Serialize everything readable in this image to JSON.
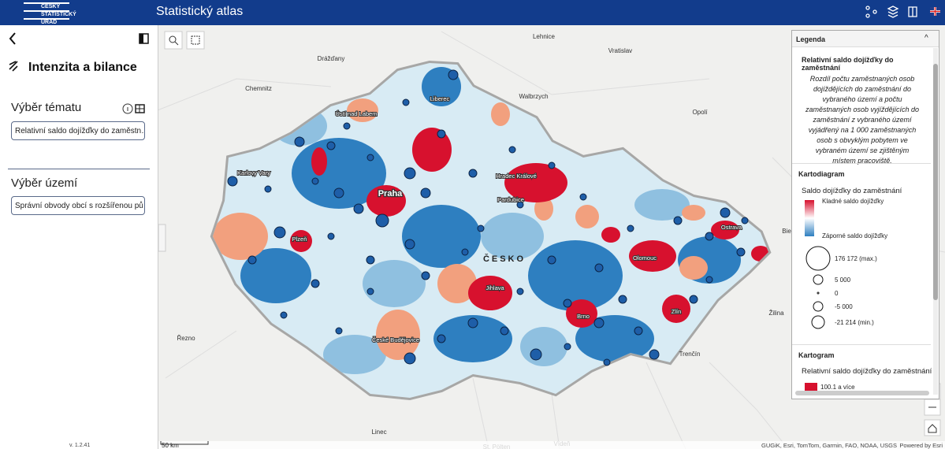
{
  "header": {
    "logo": [
      "ČESKÝ",
      "STATISTICKÝ",
      "ÚŘAD"
    ],
    "title": "Statistický atlas"
  },
  "sidebar": {
    "heading": "Intenzita a bilance",
    "topic_label": "Výběr tématu",
    "topic_value": "Relativní saldo dojížďky do zaměstn…",
    "area_label": "Výběr území",
    "area_value": "Správní obvody obcí s rozšířenou pů…",
    "version": "v. 1.2.41"
  },
  "map": {
    "labels": [
      "Lehnice",
      "Drážďany",
      "Vratislav",
      "Chemnitz",
      "Walbrzych",
      "Liberec",
      "Ústí nad Labem",
      "Opolí",
      "Karlovy Vary",
      "Praha",
      "Hradec Králové",
      "Pardubice",
      "Ostrava",
      "Plzeň",
      "ČESKO",
      "Olomouc",
      "Jihlava",
      "Brno",
      "Zlín",
      "Žilina",
      "Řezno",
      "České Budějovice",
      "Trenčín",
      "Linec",
      "Vídeň",
      "St. Pölten",
      "Bie"
    ],
    "scale": "50 km",
    "attribution": "GUGiK, Esri, TomTom, Garmin, FAO, NOAA, USGS",
    "powered": "Powered by Esri"
  },
  "legend": {
    "title": "Legenda",
    "layer": "Relativní saldo dojížďky do zaměstnání",
    "description": "Rozdíl počtu zaměstnaných osob dojíždějících do zaměstnání do vybraného území a počtu zaměstnaných osob vyjíždějících do zaměstnání z vybraného území vyjádřený na 1 000 zaměstnaných osob s obvyklým pobytem ve vybraném území se zjištěným místem pracoviště.",
    "diagram_heading": "Kartodiagram",
    "diagram_title": "Saldo dojížďky do zaměstnání",
    "positive": "Kladné saldo dojížďky",
    "negative": "Záporné saldo dojížďky",
    "sizes": [
      "176 172 (max.)",
      "5 000",
      "0",
      "-5 000",
      "-21 214 (min.)"
    ],
    "gram_heading": "Kartogram",
    "gram_title": "Relativní saldo dojížďky do zaměstnání",
    "gram_first": "100.1 a více"
  }
}
